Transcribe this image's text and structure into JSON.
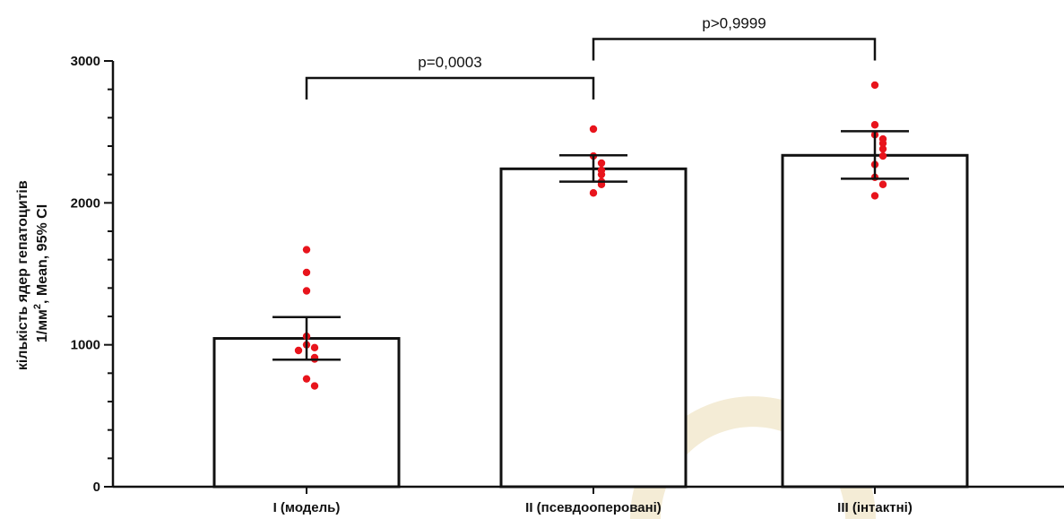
{
  "chart_data": {
    "type": "bar",
    "categories": [
      "I (модель)",
      "II (псевдооперовані)",
      "III (інтактні)"
    ],
    "bars": [
      {
        "mean": 1045,
        "ci_low": 895,
        "ci_high": 1195
      },
      {
        "mean": 2240,
        "ci_low": 2150,
        "ci_high": 2335
      },
      {
        "mean": 2335,
        "ci_low": 2170,
        "ci_high": 2505
      }
    ],
    "points": [
      [
        1670,
        1510,
        1380,
        1060,
        1000,
        980,
        960,
        910,
        900,
        760,
        710
      ],
      [
        2520,
        2330,
        2280,
        2230,
        2200,
        2150,
        2130,
        2070
      ],
      [
        2830,
        2550,
        2480,
        2450,
        2420,
        2380,
        2330,
        2270,
        2180,
        2130,
        2050
      ]
    ],
    "ylim": [
      0,
      3000
    ],
    "yticks": [
      "0",
      "1000",
      "2000",
      "3000"
    ],
    "ylabel_line1": "кількість ядер гепатоцитів",
    "ylabel_line2_pre": "1/мм",
    "ylabel_line2_sup": "2",
    "ylabel_line2_post": ", Mean, 95% CI",
    "comparisons": [
      {
        "from": 0,
        "to": 1,
        "label": "p=0,0003",
        "level": 2880
      },
      {
        "from": 1,
        "to": 2,
        "label": "p>0,9999",
        "level": 3155
      }
    ],
    "colors": {
      "points": "#e8141c",
      "bar_fill": "#ffffff",
      "bar_stroke": "#111111"
    },
    "grid": false,
    "legend": "none"
  }
}
